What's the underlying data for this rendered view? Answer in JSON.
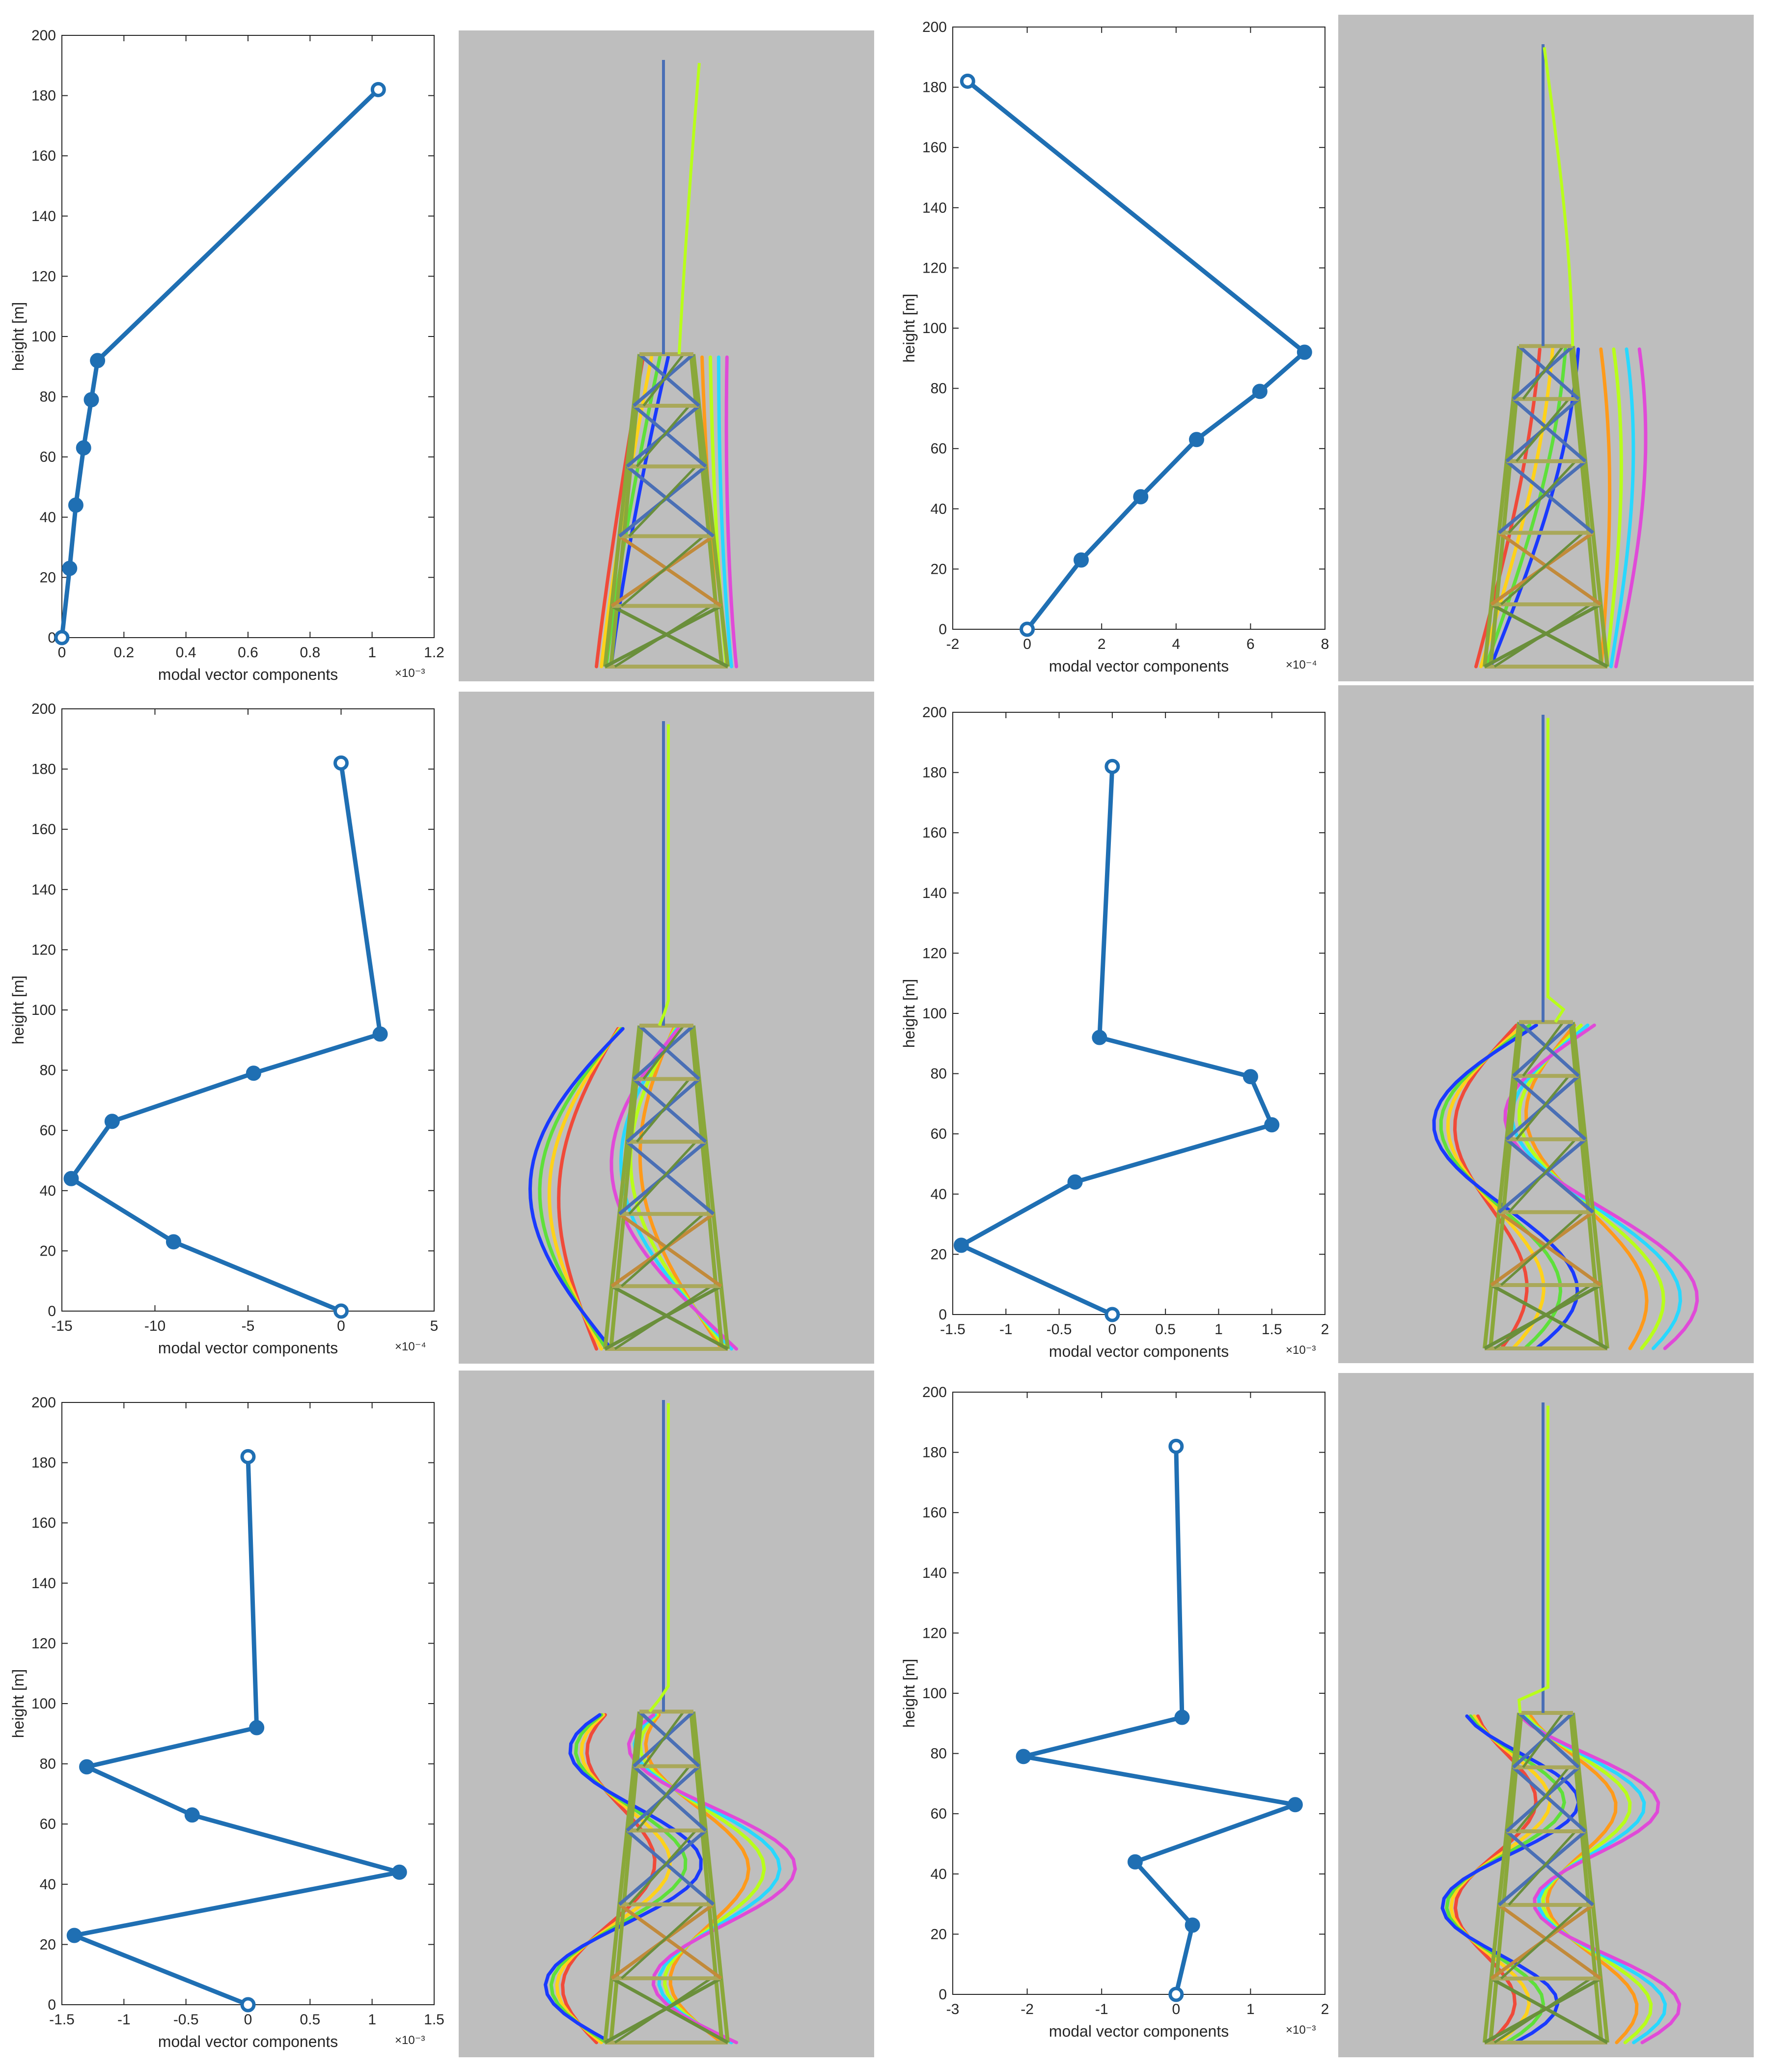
{
  "colors": {
    "line": "#1f6fb3",
    "axes": "#262626",
    "grey_bg": "#bebebe",
    "tower_palette": [
      "#6a8f3b",
      "#8aa83a",
      "#a9a85a",
      "#c28a3a",
      "#4a6fb5",
      "#5a7bd0",
      "#c83a6a",
      "#e04ad8",
      "#f04a3a",
      "#ff9a1a",
      "#ffd21a",
      "#b8ff1a",
      "#5ee03a",
      "#28d8ff",
      "#1a3aff"
    ]
  },
  "chart_data": [
    {
      "type": "line",
      "xlabel": "modal vector components",
      "ylabel": "height [m]",
      "xlim": [
        0,
        1.2
      ],
      "xticks": [
        "0",
        "0.2",
        "0.4",
        "0.6",
        "0.8",
        "1",
        "1.2"
      ],
      "xexp": "×10⁻³",
      "ylim": [
        0,
        200
      ],
      "yticks": [
        "0",
        "20",
        "40",
        "60",
        "80",
        "100",
        "120",
        "140",
        "160",
        "180",
        "200"
      ],
      "x": [
        0,
        0.025,
        0.045,
        0.07,
        0.095,
        0.115,
        1.02
      ],
      "y": [
        0,
        23,
        44,
        63,
        79,
        92,
        182
      ],
      "tower": "mode1"
    },
    {
      "type": "line",
      "xlabel": "modal vector components",
      "ylabel": "height [m]",
      "xlim": [
        -2,
        8
      ],
      "xticks": [
        "-2",
        "0",
        "2",
        "4",
        "6",
        "8"
      ],
      "xexp": "×10⁻⁴",
      "ylim": [
        0,
        200
      ],
      "yticks": [
        "0",
        "20",
        "40",
        "60",
        "80",
        "100",
        "120",
        "140",
        "160",
        "180",
        "200"
      ],
      "x": [
        0,
        1.45,
        3.05,
        4.55,
        6.25,
        7.45,
        -1.6
      ],
      "y": [
        0,
        23,
        44,
        63,
        79,
        92,
        182
      ],
      "tower": "mode2"
    },
    {
      "type": "line",
      "xlabel": "modal vector components",
      "ylabel": "height [m]",
      "xlim": [
        -15,
        5
      ],
      "xticks": [
        "-15",
        "-10",
        "-5",
        "0",
        "5"
      ],
      "xexp": "×10⁻⁴",
      "ylim": [
        0,
        200
      ],
      "yticks": [
        "0",
        "20",
        "40",
        "60",
        "80",
        "100",
        "120",
        "140",
        "160",
        "180",
        "200"
      ],
      "x": [
        0,
        -9,
        -14.5,
        -12.3,
        -4.7,
        2.1,
        0
      ],
      "y": [
        0,
        23,
        44,
        63,
        79,
        92,
        182
      ],
      "tower": "mode3"
    },
    {
      "type": "line",
      "xlabel": "modal vector components",
      "ylabel": "height [m]",
      "xlim": [
        -1.5,
        2
      ],
      "xticks": [
        "-1.5",
        "-1",
        "-0.5",
        "0",
        "0.5",
        "1",
        "1.5",
        "2"
      ],
      "xexp": "×10⁻³",
      "ylim": [
        0,
        200
      ],
      "yticks": [
        "0",
        "20",
        "40",
        "60",
        "80",
        "100",
        "120",
        "140",
        "160",
        "180",
        "200"
      ],
      "x": [
        0,
        -1.42,
        -0.35,
        1.5,
        1.3,
        -0.12,
        0
      ],
      "y": [
        0,
        23,
        44,
        63,
        79,
        92,
        182
      ],
      "tower": "mode4"
    },
    {
      "type": "line",
      "xlabel": "modal vector components",
      "ylabel": "height [m]",
      "xlim": [
        -1.5,
        1.5
      ],
      "xticks": [
        "-1.5",
        "-1",
        "-0.5",
        "0",
        "0.5",
        "1",
        "1.5"
      ],
      "xexp": "×10⁻³",
      "ylim": [
        0,
        200
      ],
      "yticks": [
        "0",
        "20",
        "40",
        "60",
        "80",
        "100",
        "120",
        "140",
        "160",
        "180",
        "200"
      ],
      "x": [
        0,
        -1.4,
        1.22,
        -0.45,
        -1.3,
        0.07,
        0
      ],
      "y": [
        0,
        23,
        44,
        63,
        79,
        92,
        182
      ],
      "tower": "mode5"
    },
    {
      "type": "line",
      "xlabel": "modal vector components",
      "ylabel": "height [m]",
      "xlim": [
        -3,
        2
      ],
      "xticks": [
        "-3",
        "-2",
        "-1",
        "0",
        "1",
        "2"
      ],
      "xexp": "×10⁻³",
      "ylim": [
        0,
        200
      ],
      "yticks": [
        "0",
        "20",
        "40",
        "60",
        "80",
        "100",
        "120",
        "140",
        "160",
        "180",
        "200"
      ],
      "x": [
        0,
        0.22,
        -0.55,
        1.6,
        -2.05,
        0.08,
        0
      ],
      "y": [
        0,
        23,
        44,
        63,
        79,
        92,
        182
      ],
      "tower": "mode6"
    }
  ]
}
